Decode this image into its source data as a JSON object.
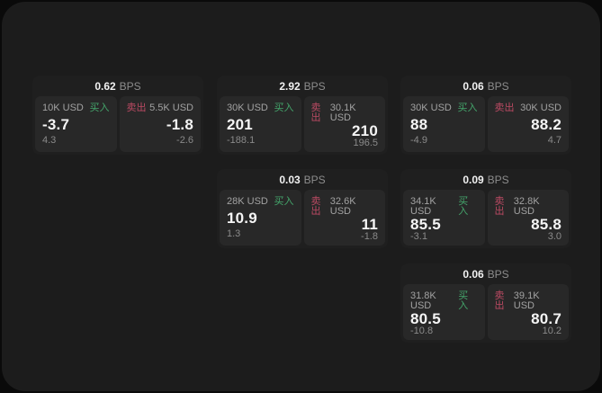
{
  "labels": {
    "bps_unit": "BPS",
    "buy": "买入",
    "sell": "卖出"
  },
  "colors": {
    "page_bg": "#0a0a0a",
    "panel_bg": "#1c1c1c",
    "card_bg": "#1f1f1f",
    "tile_bg": "#282828",
    "text_primary": "#f5f5f5",
    "text_muted": "#8a8a8a",
    "buy_green": "#44a56b",
    "sell_red": "#bb4a63"
  },
  "cards": [
    {
      "bps": "0.62",
      "buy": {
        "amount": "10K USD",
        "price": "-3.7",
        "delta": "4.3"
      },
      "sell": {
        "amount": "5.5K USD",
        "price": "-1.8",
        "delta": "-2.6"
      }
    },
    {
      "bps": "2.92",
      "buy": {
        "amount": "30K USD",
        "price": "201",
        "delta": "-188.1"
      },
      "sell": {
        "amount": "30.1K USD",
        "price": "210",
        "delta": "196.5"
      }
    },
    {
      "bps": "0.06",
      "buy": {
        "amount": "30K USD",
        "price": "88",
        "delta": "-4.9"
      },
      "sell": {
        "amount": "30K USD",
        "price": "88.2",
        "delta": "4.7"
      }
    },
    {
      "bps": "0.03",
      "buy": {
        "amount": "28K USD",
        "price": "10.9",
        "delta": "1.3"
      },
      "sell": {
        "amount": "32.6K USD",
        "price": "11",
        "delta": "-1.8"
      }
    },
    {
      "bps": "0.09",
      "buy": {
        "amount": "34.1K USD",
        "price": "85.5",
        "delta": "-3.1"
      },
      "sell": {
        "amount": "32.8K USD",
        "price": "85.8",
        "delta": "3.0"
      }
    },
    {
      "bps": "0.06",
      "buy": {
        "amount": "31.8K USD",
        "price": "80.5",
        "delta": "-10.8"
      },
      "sell": {
        "amount": "39.1K USD",
        "price": "80.7",
        "delta": "10.2"
      }
    }
  ]
}
